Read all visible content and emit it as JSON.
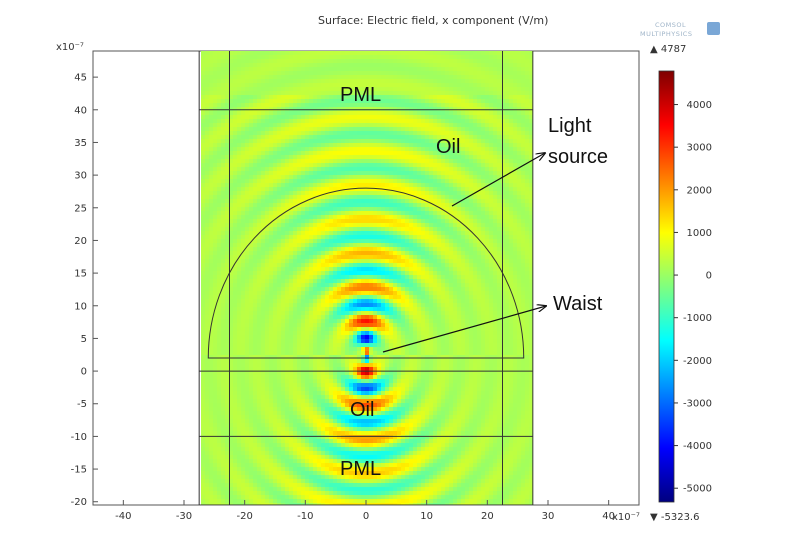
{
  "chart_data": {
    "type": "heatmap",
    "title": "Surface: Electric field, x component (V/m)",
    "x_exponent": "x10⁻⁷",
    "y_exponent": "x10⁻⁷",
    "xlim": [
      -45,
      45
    ],
    "ylim": [
      -20.5,
      49
    ],
    "x_ticks": [
      -40,
      -30,
      -20,
      -10,
      0,
      10,
      20,
      30,
      40
    ],
    "y_ticks": [
      -20,
      -15,
      -10,
      -5,
      0,
      5,
      10,
      15,
      20,
      25,
      30,
      35,
      40,
      45
    ],
    "colorbar": {
      "max_label": "▲ 4787",
      "min_label": "▼ -5323.6",
      "range": [
        -5323.6,
        4787
      ],
      "ticks": [
        4000,
        3000,
        2000,
        1000,
        0,
        -1000,
        -2000,
        -3000,
        -4000,
        -5000
      ],
      "colors": [
        "#00007f",
        "#0000ff",
        "#007fff",
        "#00ffff",
        "#7fff7f",
        "#ffff00",
        "#ff7f00",
        "#ff0000",
        "#7f0000"
      ]
    },
    "field": {
      "background_value": 220,
      "source_center": [
        0,
        2
      ],
      "source_radius": 26,
      "waist_center": [
        0,
        2.5
      ],
      "wavelength": 5.2,
      "beam_width": 9,
      "peak_positive": 4700,
      "peak_negative": -5300
    },
    "geometry": {
      "outer_box": {
        "x": [
          -27.5,
          27.5
        ],
        "y": [
          -20.5,
          50
        ]
      },
      "inner_vertical_lines_x": [
        -22.5,
        22.5
      ],
      "horizontal_lines_y": [
        40,
        0,
        -10
      ],
      "half_circle": {
        "center": [
          0,
          2
        ],
        "radius": 26
      }
    },
    "annotations": {
      "pml_top": "PML",
      "pml_bottom": "PML",
      "oil_top": "Oil",
      "oil_bottom": "Oil",
      "light_source_line1": "Light",
      "light_source_line2": "source",
      "waist": "Waist"
    },
    "logo": {
      "line1": "COMSOL",
      "line2": "MULTIPHYSICS"
    }
  }
}
